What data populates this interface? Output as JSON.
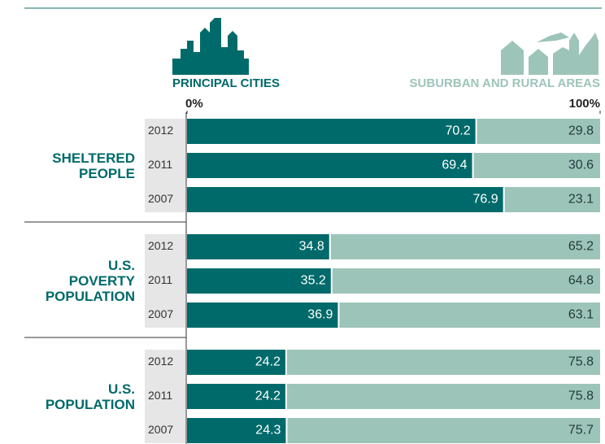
{
  "chart_data": {
    "type": "stacked-bar-horizontal",
    "groups": [
      "SHELTERED PEOPLE",
      "U.S. POVERTY POPULATION",
      "U.S. POPULATION"
    ],
    "categories": [
      "2012",
      "2011",
      "2007",
      "2012",
      "2011",
      "2007",
      "2012",
      "2011",
      "2007"
    ],
    "series": [
      {
        "name": "PRINCIPAL CITIES",
        "color": "#006a6a",
        "values": [
          70.2,
          69.4,
          76.9,
          34.8,
          35.2,
          36.9,
          24.2,
          24.2,
          24.3
        ]
      },
      {
        "name": "SUBURBAN AND RURAL AREAS",
        "color": "#9dc4b9",
        "values": [
          29.8,
          30.6,
          23.1,
          65.2,
          64.8,
          63.1,
          75.8,
          75.8,
          75.7
        ]
      }
    ],
    "xlim": [
      0,
      100
    ],
    "xticks": [
      {
        "value": 0,
        "label": "0%"
      },
      {
        "value": 100,
        "label": "100%"
      }
    ]
  }
}
